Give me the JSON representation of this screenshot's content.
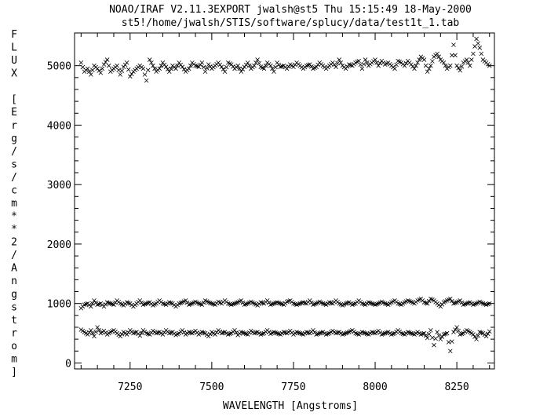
{
  "header": {
    "line1": "NOAO/IRAF V2.11.3EXPORT jwalsh@st5 Thu 15:15:49 18-May-2000",
    "line2": "st5!/home/jwalsh/STIS/software/splucy/data/test1t_1.tab"
  },
  "chart_data": {
    "type": "scatter",
    "marker": "x",
    "xlabel": "WAVELENGTH [Angstroms]",
    "ylabel": "FLUX [Erg/s/cm**2/Angstrom]",
    "xlim": [
      7080,
      8365
    ],
    "ylim": [
      -100,
      5550
    ],
    "xticks": [
      7250,
      7500,
      7750,
      8000,
      8250
    ],
    "yticks": [
      0,
      1000,
      2000,
      3000,
      4000,
      5000
    ],
    "x_start": 7100,
    "x_end": 8350,
    "series": [
      {
        "values_note": "upper band",
        "x": [
          7100,
          7110,
          7120,
          7130,
          7140,
          7150,
          7160,
          7170,
          7180,
          7190,
          7200,
          7210,
          7220,
          7230,
          7240,
          7250,
          7260,
          7270,
          7280,
          7290,
          7300,
          7310,
          7320,
          7330,
          7340,
          7350,
          7360,
          7370,
          7380,
          7390,
          7400,
          7410,
          7420,
          7430,
          7440,
          7450,
          7460,
          7470,
          7480,
          7490,
          7500,
          7510,
          7520,
          7530,
          7540,
          7550,
          7560,
          7570,
          7580,
          7590,
          7600,
          7610,
          7620,
          7630,
          7640,
          7650,
          7660,
          7670,
          7680,
          7690,
          7700,
          7710,
          7720,
          7730,
          7740,
          7750,
          7760,
          7770,
          7780,
          7790,
          7800,
          7810,
          7820,
          7830,
          7840,
          7850,
          7860,
          7870,
          7880,
          7890,
          7900,
          7910,
          7920,
          7930,
          7940,
          7950,
          7960,
          7970,
          7980,
          7990,
          8000,
          8010,
          8020,
          8030,
          8040,
          8050,
          8060,
          8070,
          8080,
          8090,
          8100,
          8110,
          8120,
          8130,
          8140,
          8150,
          8160,
          8170,
          8180,
          8190,
          8200,
          8210,
          8220,
          8230,
          8240,
          8250,
          8260,
          8270,
          8280,
          8290,
          8300,
          8310,
          8320,
          8330,
          8340,
          8350
        ],
        "y": [
          5050,
          4900,
          4950,
          4850,
          5000,
          4950,
          4880,
          5020,
          5100,
          4900,
          4950,
          5000,
          4850,
          4980,
          5050,
          4820,
          4900,
          4950,
          5000,
          4950,
          4750,
          5100,
          5000,
          4900,
          4950,
          5050,
          4980,
          4900,
          5000,
          4950,
          5050,
          4980,
          4900,
          4950,
          5050,
          5000,
          4980,
          5050,
          4900,
          5020,
          4950,
          5000,
          5050,
          4980,
          4900,
          5050,
          5020,
          4950,
          5000,
          4900,
          4980,
          5050,
          4950,
          5000,
          5100,
          4980,
          4950,
          5050,
          5000,
          4900,
          5050,
          4980,
          5000,
          4950,
          5020,
          4980,
          5050,
          5000,
          4950,
          5000,
          5020,
          4950,
          4980,
          5050,
          5000,
          4950,
          5000,
          5050,
          4980,
          5100,
          5000,
          4950,
          5020,
          5000,
          5050,
          5080,
          4950,
          5100,
          5000,
          5050,
          5100,
          5000,
          5080,
          5020,
          5050,
          5000,
          4950,
          5080,
          5050,
          5000,
          5080,
          5020,
          4950,
          5050,
          5150,
          5100,
          4900,
          5000,
          5150,
          5200,
          5100,
          5050,
          4950,
          5000,
          5350,
          5000,
          4920,
          5050,
          5100,
          5000,
          5200,
          5450,
          5300,
          5100,
          5050,
          5000
        ]
      },
      {
        "values_note": "middle band",
        "x": [
          7100,
          7110,
          7120,
          7130,
          7140,
          7150,
          7160,
          7170,
          7180,
          7190,
          7200,
          7210,
          7220,
          7230,
          7240,
          7250,
          7260,
          7270,
          7280,
          7290,
          7300,
          7310,
          7320,
          7330,
          7340,
          7350,
          7360,
          7370,
          7380,
          7390,
          7400,
          7410,
          7420,
          7430,
          7440,
          7450,
          7460,
          7470,
          7480,
          7490,
          7500,
          7510,
          7520,
          7530,
          7540,
          7550,
          7560,
          7570,
          7580,
          7590,
          7600,
          7610,
          7620,
          7630,
          7640,
          7650,
          7660,
          7670,
          7680,
          7690,
          7700,
          7710,
          7720,
          7730,
          7740,
          7750,
          7760,
          7770,
          7780,
          7790,
          7800,
          7810,
          7820,
          7830,
          7840,
          7850,
          7860,
          7870,
          7880,
          7890,
          7900,
          7910,
          7920,
          7930,
          7940,
          7950,
          7960,
          7970,
          7980,
          7990,
          8000,
          8010,
          8020,
          8030,
          8040,
          8050,
          8060,
          8070,
          8080,
          8090,
          8100,
          8110,
          8120,
          8130,
          8140,
          8150,
          8160,
          8170,
          8180,
          8190,
          8200,
          8210,
          8220,
          8230,
          8240,
          8250,
          8260,
          8270,
          8280,
          8290,
          8300,
          8310,
          8320,
          8330,
          8340,
          8350
        ],
        "y": [
          920,
          980,
          1000,
          950,
          1050,
          980,
          1000,
          950,
          1020,
          1000,
          980,
          1050,
          1000,
          970,
          1020,
          1000,
          950,
          1000,
          1050,
          980,
          1000,
          1020,
          970,
          1000,
          1050,
          1000,
          980,
          1020,
          1000,
          950,
          1000,
          1020,
          1050,
          980,
          1000,
          1030,
          1000,
          980,
          1050,
          1020,
          1000,
          980,
          1030,
          1000,
          1050,
          1000,
          980,
          1000,
          1020,
          1050,
          980,
          1000,
          1030,
          1000,
          970,
          1020,
          1000,
          1050,
          980,
          1000,
          1020,
          1000,
          980,
          1030,
          1050,
          1000,
          980,
          1000,
          1020,
          1000,
          1050,
          980,
          1000,
          1030,
          1000,
          980,
          1020,
          1000,
          1050,
          1000,
          970,
          1000,
          1020,
          980,
          1000,
          1050,
          1000,
          980,
          1020,
          1000,
          980,
          1000,
          1030,
          1000,
          980,
          1020,
          1050,
          1000,
          980,
          1020,
          1050,
          1030,
          1000,
          1050,
          1080,
          1020,
          1000,
          1080,
          1050,
          1000,
          950,
          1020,
          1050,
          1080,
          1000,
          1020,
          1050,
          980,
          1000,
          1020,
          980,
          1000,
          1030,
          1000,
          980,
          1000
        ]
      },
      {
        "values_note": "lower band",
        "x": [
          7100,
          7110,
          7120,
          7130,
          7140,
          7150,
          7160,
          7170,
          7180,
          7190,
          7200,
          7210,
          7220,
          7230,
          7240,
          7250,
          7260,
          7270,
          7280,
          7290,
          7300,
          7310,
          7320,
          7330,
          7340,
          7350,
          7360,
          7370,
          7380,
          7390,
          7400,
          7410,
          7420,
          7430,
          7440,
          7450,
          7460,
          7470,
          7480,
          7490,
          7500,
          7510,
          7520,
          7530,
          7540,
          7550,
          7560,
          7570,
          7580,
          7590,
          7600,
          7610,
          7620,
          7630,
          7640,
          7650,
          7660,
          7670,
          7680,
          7690,
          7700,
          7710,
          7720,
          7730,
          7740,
          7750,
          7760,
          7770,
          7780,
          7790,
          7800,
          7810,
          7820,
          7830,
          7840,
          7850,
          7860,
          7870,
          7880,
          7890,
          7900,
          7910,
          7920,
          7930,
          7940,
          7950,
          7960,
          7970,
          7980,
          7990,
          8000,
          8010,
          8020,
          8030,
          8040,
          8050,
          8060,
          8070,
          8080,
          8090,
          8100,
          8110,
          8120,
          8130,
          8140,
          8150,
          8160,
          8170,
          8180,
          8190,
          8200,
          8210,
          8220,
          8230,
          8240,
          8250,
          8260,
          8270,
          8280,
          8290,
          8300,
          8310,
          8320,
          8330,
          8340,
          8350
        ],
        "y": [
          560,
          520,
          480,
          550,
          450,
          600,
          500,
          540,
          480,
          520,
          550,
          500,
          450,
          520,
          480,
          550,
          500,
          520,
          460,
          550,
          500,
          480,
          540,
          500,
          520,
          480,
          550,
          500,
          520,
          470,
          500,
          550,
          480,
          520,
          500,
          540,
          480,
          520,
          500,
          450,
          520,
          480,
          550,
          500,
          520,
          480,
          500,
          550,
          470,
          520,
          500,
          480,
          540,
          500,
          520,
          480,
          500,
          550,
          490,
          520,
          500,
          480,
          520,
          500,
          540,
          480,
          520,
          500,
          480,
          520,
          500,
          550,
          480,
          500,
          520,
          480,
          500,
          540,
          500,
          520,
          480,
          500,
          520,
          550,
          500,
          480,
          520,
          500,
          480,
          520,
          500,
          540,
          480,
          500,
          520,
          480,
          500,
          550,
          500,
          480,
          520,
          500,
          480,
          520,
          480,
          500,
          420,
          550,
          300,
          520,
          400,
          480,
          500,
          200,
          520,
          600,
          480,
          500,
          550,
          520,
          480,
          400,
          520,
          500,
          450,
          530
        ]
      }
    ]
  }
}
